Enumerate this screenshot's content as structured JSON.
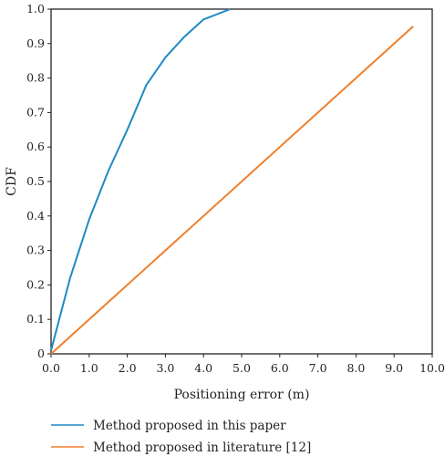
{
  "chart_data": {
    "type": "line",
    "title": "",
    "xlabel": "Positioning error (m)",
    "ylabel": "CDF",
    "xlim": [
      0,
      10
    ],
    "ylim": [
      0,
      1
    ],
    "x_ticks": [
      "0.0",
      "1.0",
      "2.0",
      "3.0",
      "4.0",
      "5.0",
      "6.0",
      "7.0",
      "8.0",
      "9.0",
      "10.0"
    ],
    "y_ticks": [
      "0",
      "0.1",
      "0.2",
      "0.3",
      "0.4",
      "0.5",
      "0.6",
      "0.7",
      "0.8",
      "0.9",
      "1.0"
    ],
    "grid": false,
    "legend_position": "bottom",
    "series": [
      {
        "name": "Method proposed in this paper",
        "color": "#1f8ac4",
        "x": [
          0.0,
          0.5,
          1.0,
          1.5,
          2.0,
          2.5,
          3.0,
          3.5,
          4.0,
          4.7
        ],
        "y": [
          0.01,
          0.22,
          0.39,
          0.53,
          0.65,
          0.78,
          0.86,
          0.92,
          0.97,
          1.0
        ]
      },
      {
        "name": "Method proposed in literature [12]",
        "color": "#f07f2a",
        "x": [
          0.0,
          9.5
        ],
        "y": [
          0.0,
          0.95
        ]
      }
    ]
  }
}
